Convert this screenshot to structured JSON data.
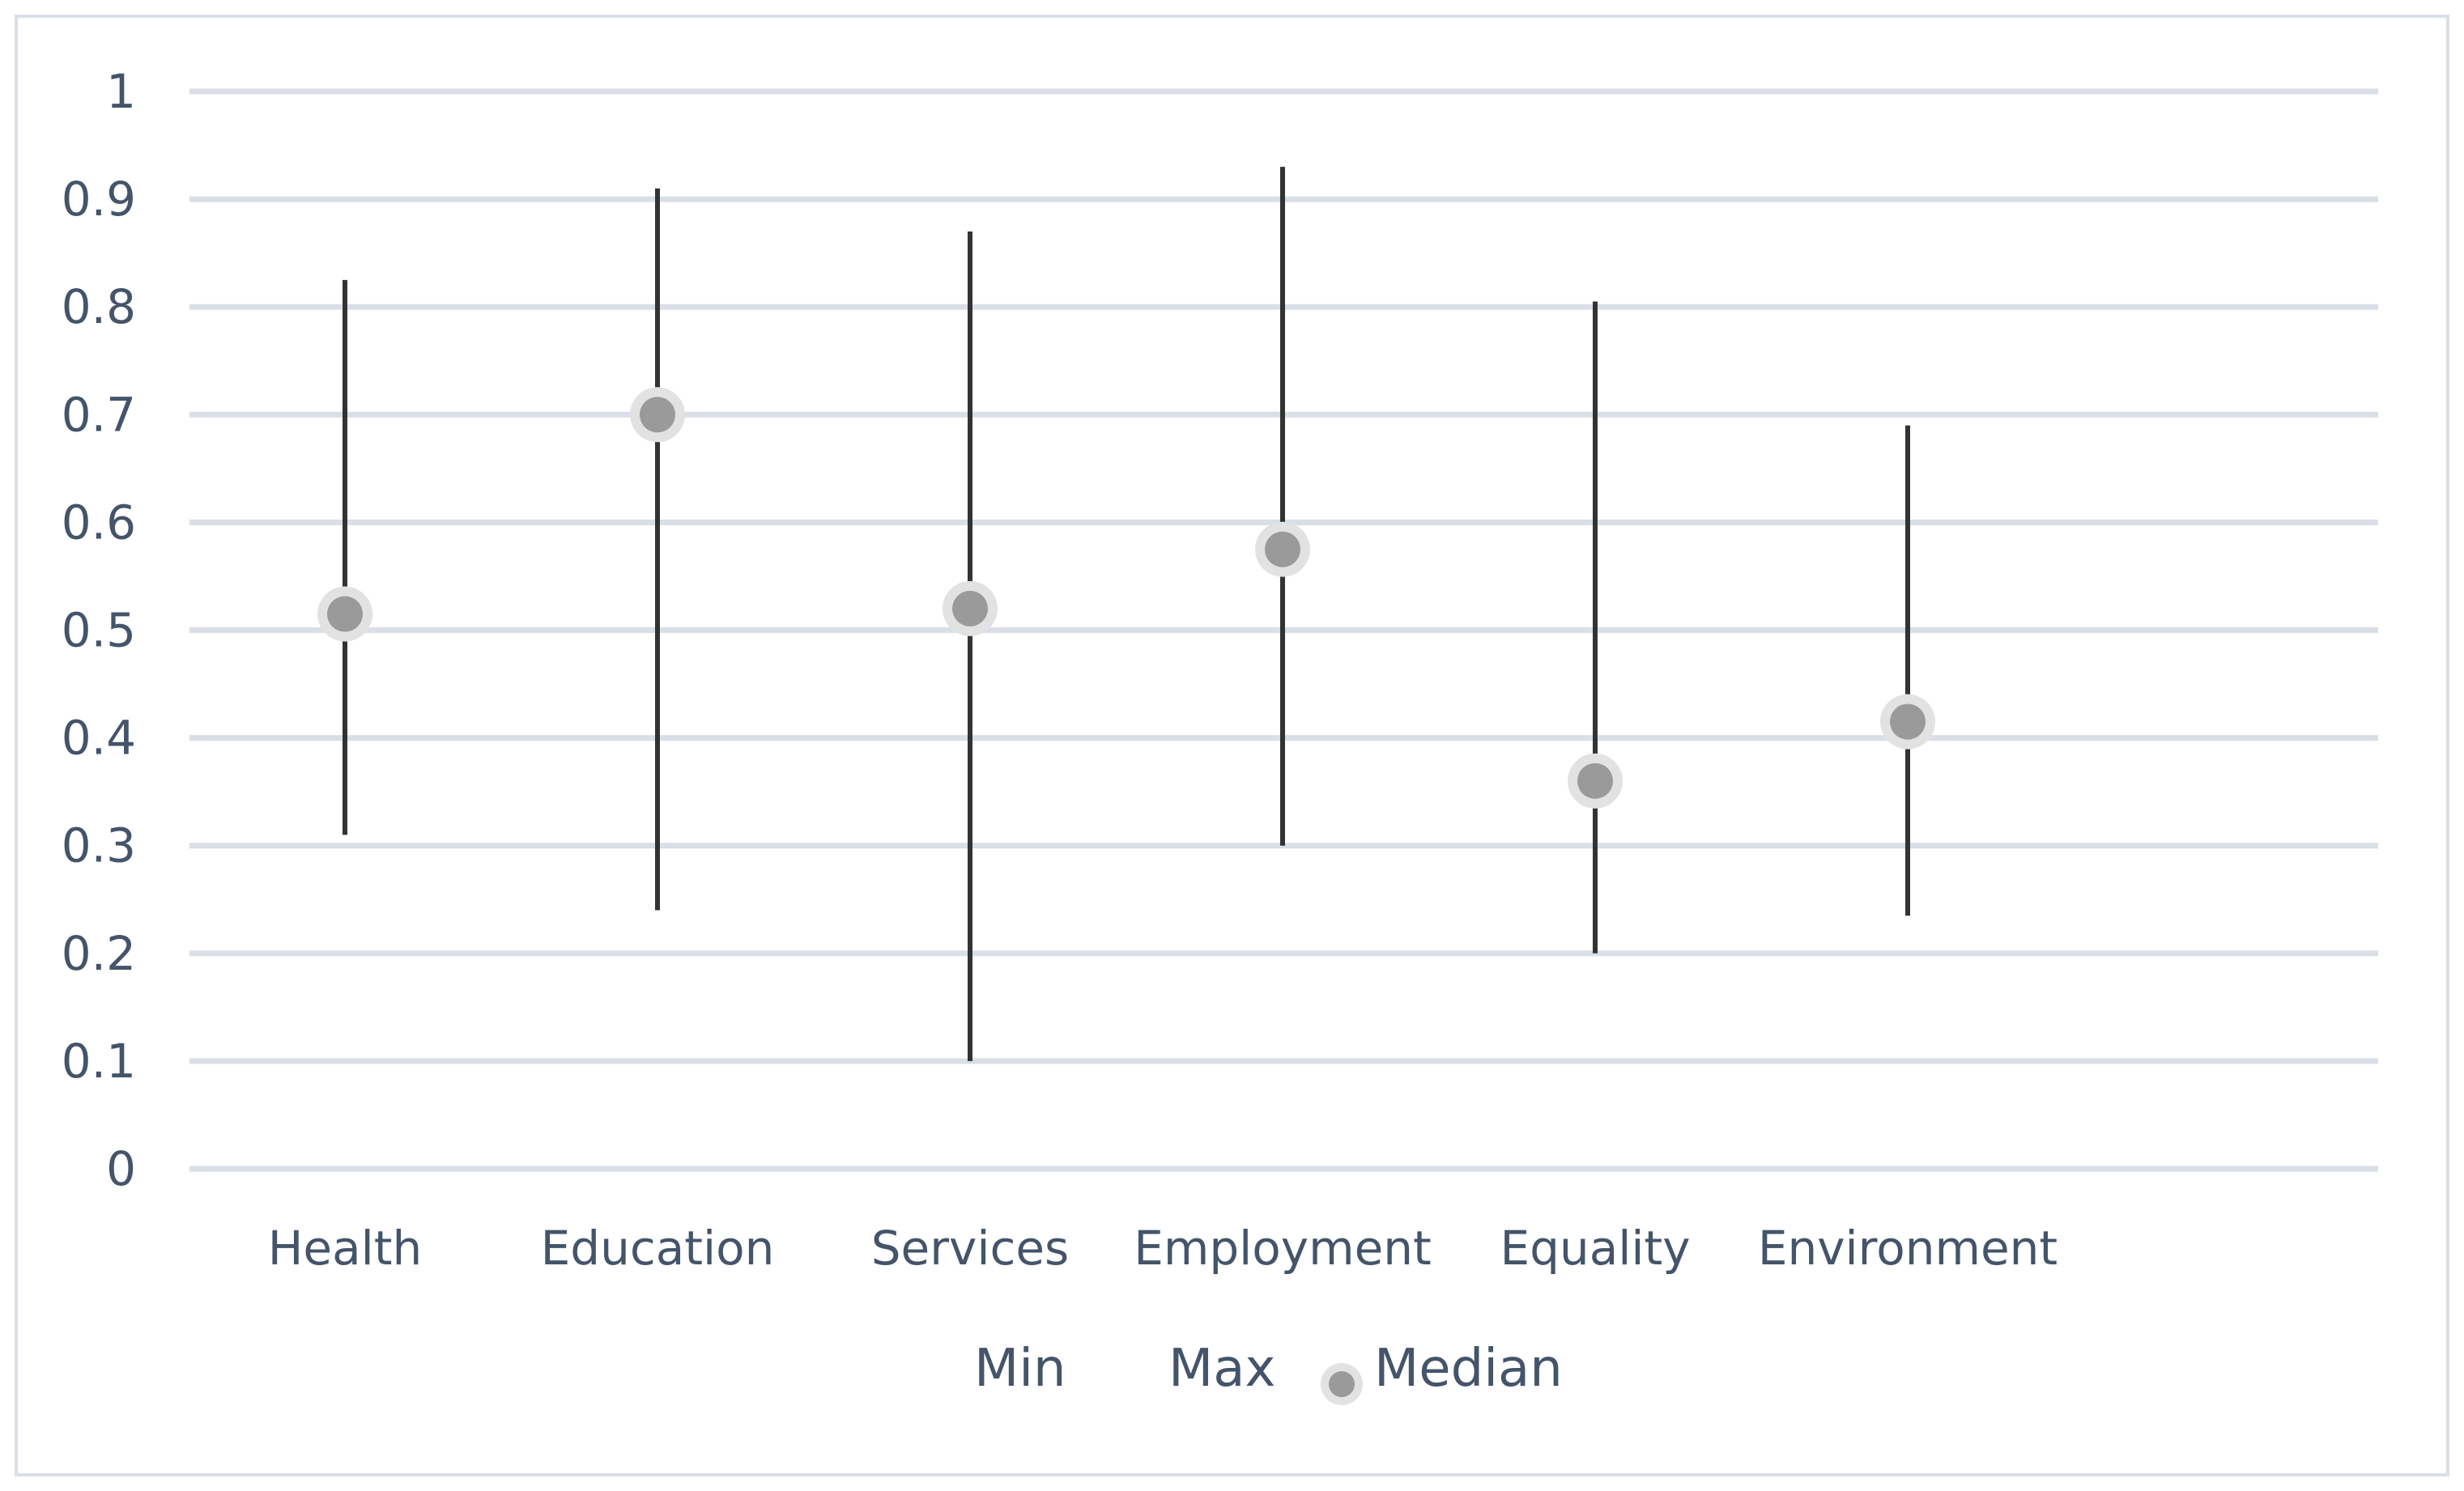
{
  "chart_data": {
    "type": "scatter",
    "title": "",
    "xlabel": "",
    "ylabel": "",
    "ylim": [
      0,
      1
    ],
    "y_ticks": [
      "0",
      "0.1",
      "0.2",
      "0.3",
      "0.4",
      "0.5",
      "0.6",
      "0.7",
      "0.8",
      "0.9",
      "1"
    ],
    "y_tick_values": [
      0,
      0.1,
      0.2,
      0.3,
      0.4,
      0.5,
      0.6,
      0.7,
      0.8,
      0.9,
      1
    ],
    "grid": true,
    "legend_position": "bottom",
    "categories": [
      "Health",
      "Education",
      "Services",
      "Employment",
      "Equality",
      "Environment"
    ],
    "series": [
      {
        "name": "Min",
        "values": [
          0.31,
          0.24,
          0.1,
          0.3,
          0.2,
          0.235
        ]
      },
      {
        "name": "Max",
        "values": [
          0.825,
          0.91,
          0.87,
          0.93,
          0.805,
          0.69
        ]
      },
      {
        "name": "Median",
        "values": [
          0.515,
          0.7,
          0.52,
          0.575,
          0.36,
          0.415
        ]
      }
    ],
    "legend": [
      "Min",
      "Max",
      "Median"
    ],
    "colors": {
      "range_line": "#333333",
      "median_fill": "#9a9a9a",
      "median_halo": "#e2e2e2",
      "gridline": "#d9dee7",
      "text": "#44546a",
      "frame": "#d9dee7"
    }
  }
}
